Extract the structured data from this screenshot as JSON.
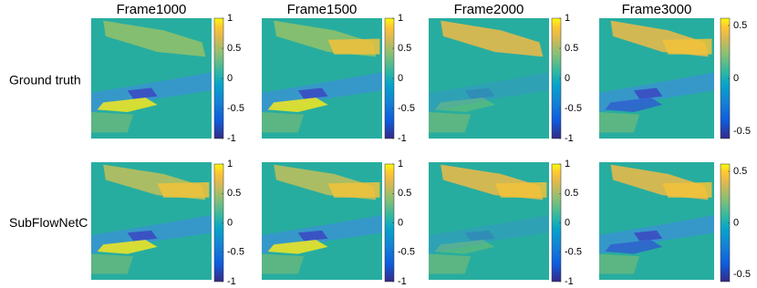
{
  "columns": [
    "Frame1000",
    "Frame1500",
    "Frame2000",
    "Frame3000"
  ],
  "rows": [
    "Ground truth",
    "SubFlowNetC"
  ],
  "colorbars": [
    [
      [
        1,
        0.5,
        0,
        -0.5,
        -1
      ],
      [
        1,
        0.5,
        0,
        -0.5,
        -1
      ],
      [
        1,
        0.5,
        0,
        -0.5,
        -1
      ],
      [
        0.5,
        0,
        -0.5
      ]
    ],
    [
      [
        1,
        0.5,
        0,
        -0.5,
        -1
      ],
      [
        1,
        0.5,
        0,
        -0.5,
        -1
      ],
      [
        1,
        0.5,
        0,
        -0.5,
        -1
      ],
      [
        0.5,
        0,
        -0.5
      ]
    ]
  ]
}
